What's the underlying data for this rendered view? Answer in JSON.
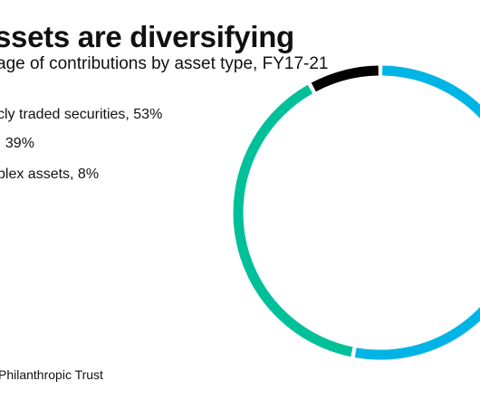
{
  "chart_data": {
    "type": "pie",
    "title": "ssets are diversifying",
    "subtitle": "age of contributions by asset type, FY17-21",
    "categories": [
      "cly traded securities",
      "39%",
      "plex assets"
    ],
    "legend_labels": [
      "cly traded securities, 53%",
      ", 39%",
      "plex assets, 8%"
    ],
    "values": [
      53,
      39,
      8
    ],
    "colors": [
      "#00b4e6",
      "#00c09a",
      "#000000"
    ],
    "style": "donut",
    "legend_placement": "left"
  },
  "source": "Philanthropic Trust"
}
